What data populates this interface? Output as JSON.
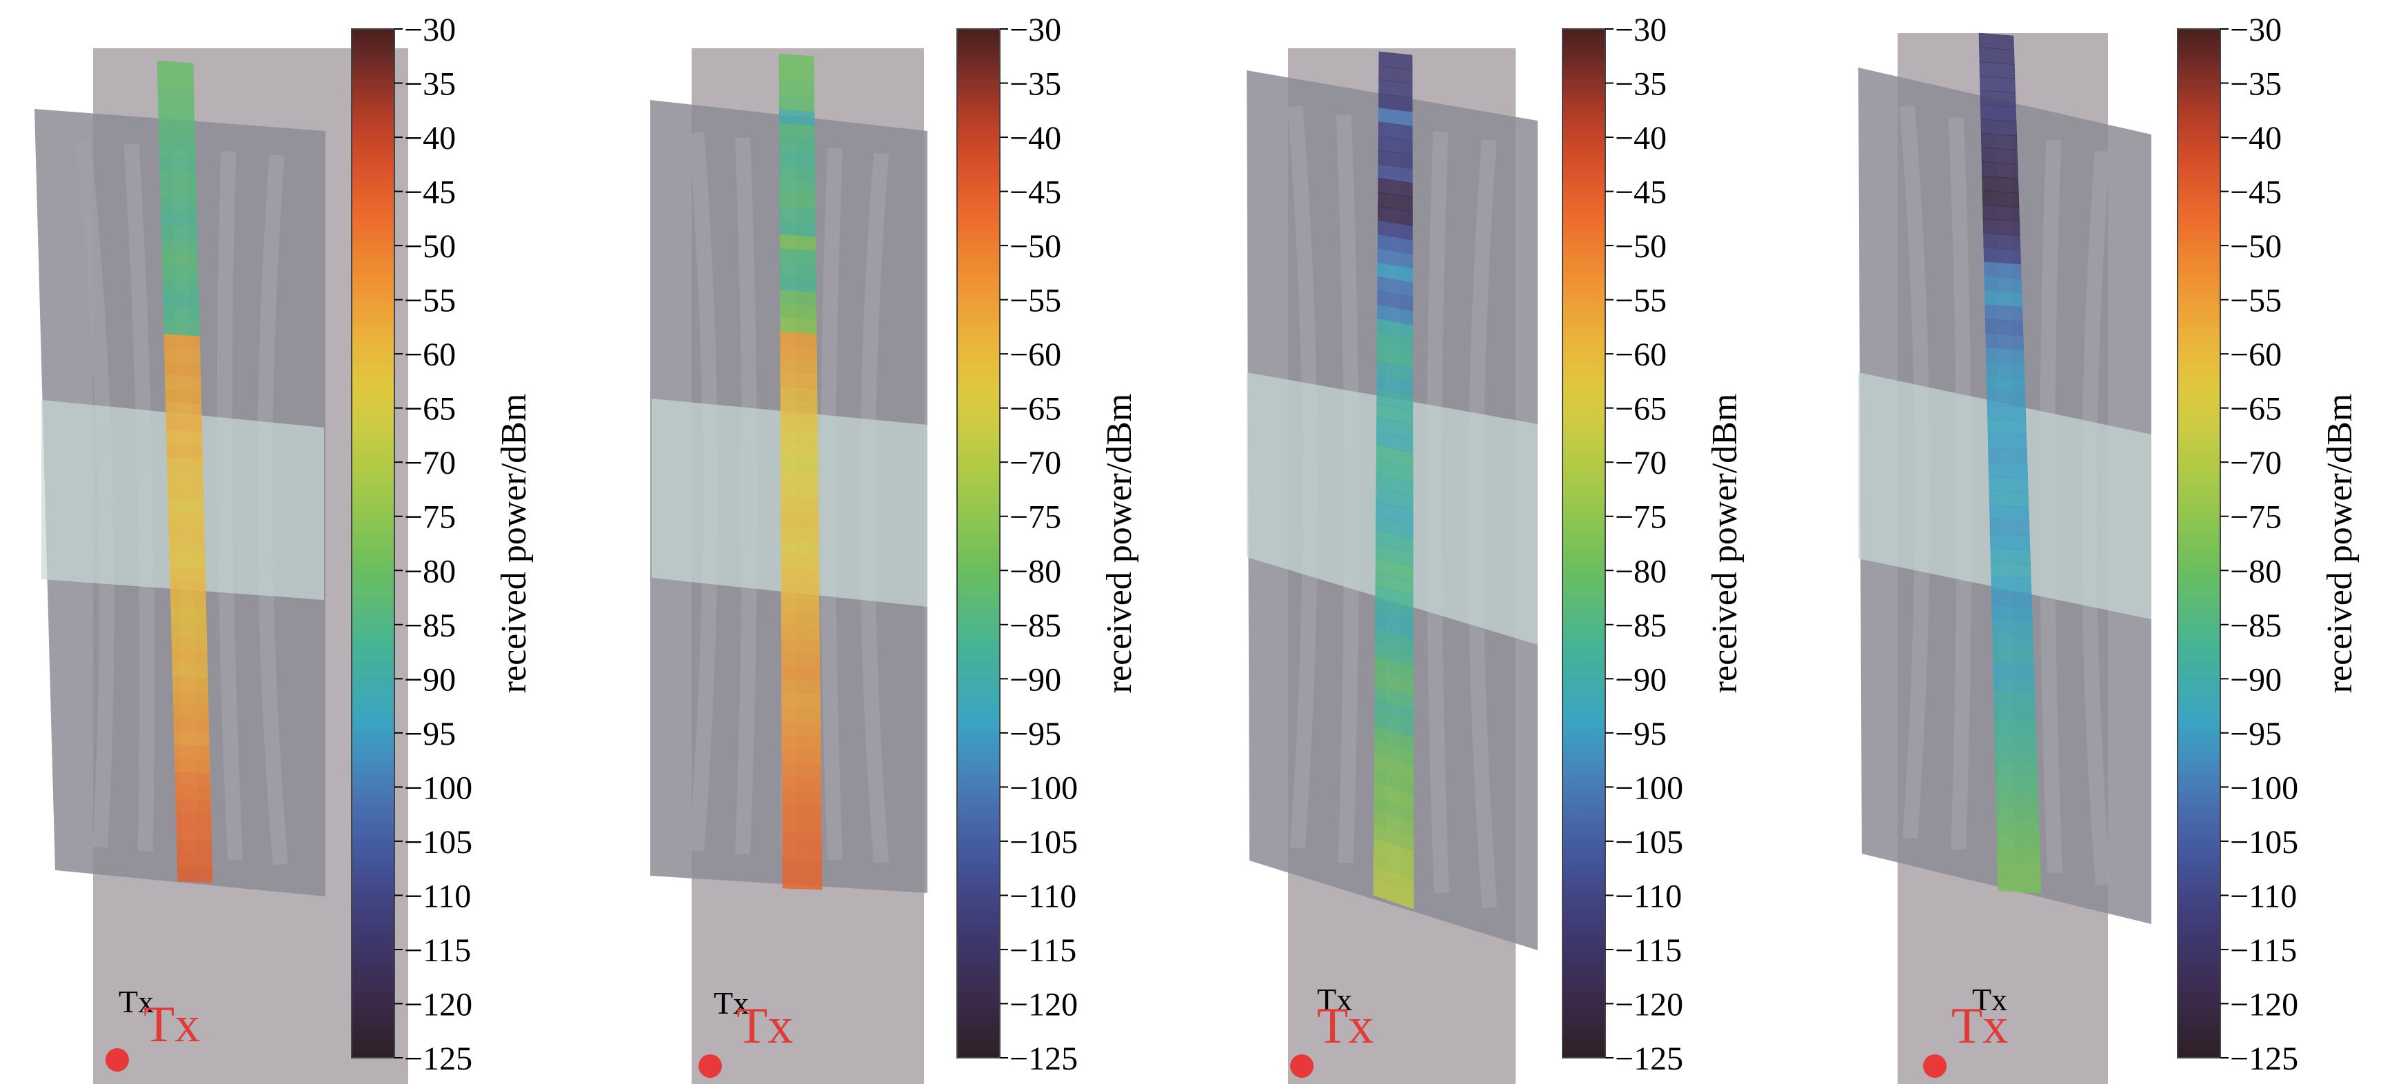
{
  "chart_data": {
    "type": "heatmap",
    "colorbar": {
      "label": "received power/dBm",
      "ticks": [
        -30,
        -35,
        -40,
        -45,
        -50,
        -55,
        -60,
        -65,
        -70,
        -75,
        -80,
        -85,
        -90,
        -95,
        -100,
        -105,
        -110,
        -115,
        -120,
        -125
      ],
      "tick_labels": [
        "−30",
        "−35",
        "−40",
        "−45",
        "−50",
        "−55",
        "−60",
        "−65",
        "−70",
        "−75",
        "−80",
        "−85",
        "−90",
        "−95",
        "−100",
        "−105",
        "−110",
        "−115",
        "−120",
        "−125"
      ],
      "range": [
        -125,
        -30
      ],
      "colors": [
        "#2e1f25",
        "#3b2a4d",
        "#403e7a",
        "#4458a0",
        "#4a78b6",
        "#3aa2c5",
        "#45b494",
        "#6fbf5b",
        "#a8c948",
        "#dccc3f",
        "#ebb23a",
        "#ef8f33",
        "#ec6a2c",
        "#d24a29",
        "#a33827",
        "#6a2a26",
        "#4a201f"
      ],
      "color_positions": [
        0,
        0.06,
        0.14,
        0.2,
        0.26,
        0.32,
        0.4,
        0.48,
        0.56,
        0.64,
        0.7,
        0.76,
        0.82,
        0.88,
        0.93,
        0.97,
        1
      ]
    },
    "panels": [
      {
        "tx_label": "Tx",
        "marker_label": "Tx",
        "strip_dbm": [
          -81,
          -81,
          -82,
          -82,
          -83,
          -84,
          -84,
          -85,
          -84,
          -84,
          -85,
          -86,
          -85,
          -84,
          -83,
          -84,
          -85,
          -86,
          -85,
          -84,
          -55,
          -56,
          -55,
          -57,
          -56,
          -58,
          -57,
          -59,
          -58,
          -60,
          -61,
          -60,
          -62,
          -61,
          -60,
          -61,
          -62,
          -60,
          -59,
          -60,
          -61,
          -60,
          -59,
          -58,
          -59,
          -57,
          -56,
          -55,
          -54,
          -55,
          -53,
          -52,
          -50,
          -49,
          -48,
          -47,
          -47,
          -46,
          -46,
          -45
        ]
      },
      {
        "tx_label": "Tx",
        "marker_label": "Tx",
        "strip_dbm": [
          -80,
          -80,
          -81,
          -82,
          -90,
          -84,
          -85,
          -86,
          -85,
          -84,
          -83,
          -85,
          -86,
          -78,
          -84,
          -85,
          -86,
          -80,
          -78,
          -76,
          -55,
          -56,
          -57,
          -58,
          -60,
          -61,
          -62,
          -63,
          -64,
          -65,
          -64,
          -63,
          -62,
          -61,
          -62,
          -63,
          -62,
          -61,
          -60,
          -59,
          -58,
          -57,
          -56,
          -55,
          -54,
          -55,
          -56,
          -55,
          -54,
          -53,
          -52,
          -51,
          -50,
          -49,
          -48,
          -48,
          -47,
          -47,
          -46,
          -46
        ]
      },
      {
        "tx_label": "Tx",
        "marker_label": "Tx",
        "strip_dbm": [
          -113,
          -113,
          -112,
          -112,
          -100,
          -110,
          -111,
          -112,
          -108,
          -118,
          -120,
          -119,
          -110,
          -104,
          -100,
          -95,
          -100,
          -102,
          -98,
          -90,
          -88,
          -87,
          -90,
          -92,
          -89,
          -88,
          -90,
          -91,
          -86,
          -87,
          -89,
          -90,
          -92,
          -91,
          -88,
          -86,
          -84,
          -85,
          -87,
          -90,
          -91,
          -88,
          -86,
          -83,
          -82,
          -84,
          -86,
          -85,
          -82,
          -80,
          -78,
          -79,
          -77,
          -78,
          -76,
          -75,
          -72,
          -72,
          -70,
          -69
        ]
      },
      {
        "tx_label": "Tx",
        "marker_label": "Tx",
        "strip_dbm": [
          -114,
          -114,
          -113,
          -112,
          -113,
          -112,
          -114,
          -116,
          -117,
          -118,
          -120,
          -121,
          -119,
          -117,
          -112,
          -110,
          -100,
          -98,
          -96,
          -100,
          -102,
          -100,
          -97,
          -96,
          -95,
          -96,
          -95,
          -94,
          -95,
          -96,
          -95,
          -94,
          -93,
          -95,
          -96,
          -95,
          -93,
          -92,
          -94,
          -96,
          -95,
          -93,
          -92,
          -91,
          -93,
          -92,
          -90,
          -89,
          -88,
          -87,
          -86,
          -85,
          -84,
          -83,
          -82,
          -81,
          -80,
          -79,
          -78,
          -78
        ]
      }
    ]
  }
}
